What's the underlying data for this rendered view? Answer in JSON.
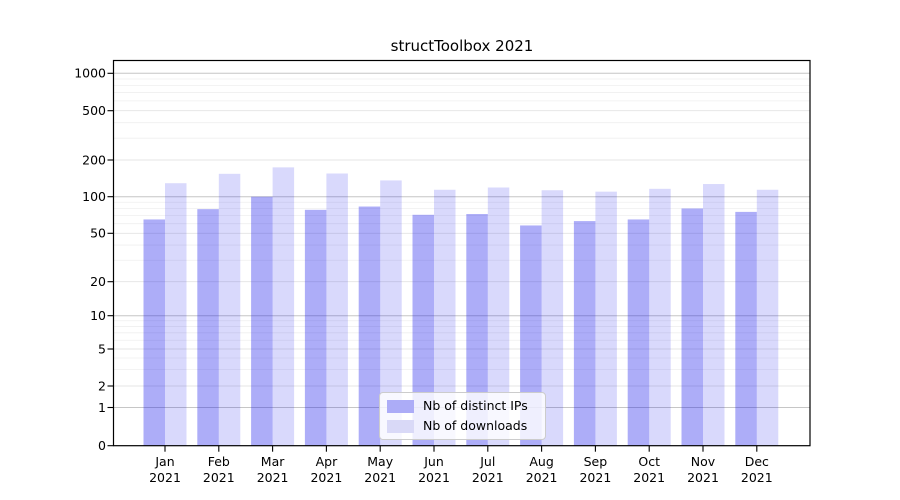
{
  "page": {
    "background": "#ffffff"
  },
  "chart_data": {
    "type": "bar",
    "title": "structToolbox 2021",
    "categories": [
      "Jan 2021",
      "Feb 2021",
      "Mar 2021",
      "Apr 2021",
      "May 2021",
      "Jun 2021",
      "Jul 2021",
      "Aug 2021",
      "Sep 2021",
      "Oct 2021",
      "Nov 2021",
      "Dec 2021"
    ],
    "series": [
      {
        "name": "Nb of distinct IPs",
        "swatch_color": "#acacf7",
        "fill": "rgba(20,20,235,0.35)",
        "values": [
          65,
          79,
          100,
          78,
          83,
          71,
          72,
          58,
          63,
          65,
          80,
          75
        ]
      },
      {
        "name": "Nb of downloads",
        "swatch_color": "#d9d9f7",
        "fill": "rgba(20,20,235,0.16)",
        "values": [
          129,
          154,
          174,
          155,
          136,
          114,
          119,
          113,
          110,
          116,
          127,
          114
        ]
      }
    ],
    "xlabel": "",
    "ylabel": "",
    "yscale": "symlog",
    "y_ticks": [
      0,
      1,
      2,
      5,
      10,
      20,
      50,
      100,
      200,
      500,
      1000
    ],
    "ylim": [
      0,
      1300
    ],
    "grid": true,
    "legend_position": "lower-center-inside",
    "axis_color": "#000000",
    "grid_color_decade": "#c6c6c6",
    "grid_color_mid": "#e4e4e4",
    "grid_color_minor": "#efefef"
  }
}
